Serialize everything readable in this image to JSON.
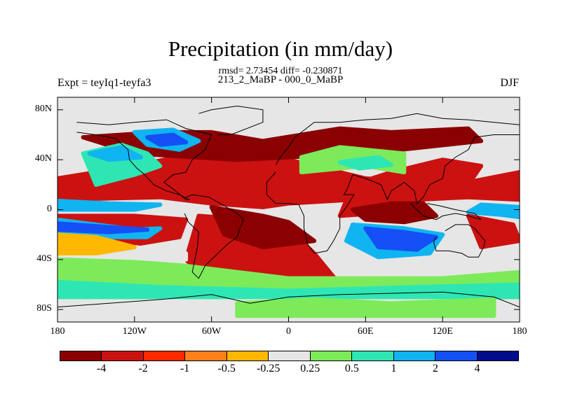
{
  "title": "Precipitation (in mm/day)",
  "stats": "rmsd= 2.73454 diff= -0.230871",
  "expt": "Expt = teyIq1-teyfa3",
  "period": "213_2_MaBP - 000_0_MaBP",
  "season": "DJF",
  "y_ticks": [
    {
      "label": "80N",
      "lat": 80
    },
    {
      "label": "40N",
      "lat": 40
    },
    {
      "label": "0",
      "lat": 0
    },
    {
      "label": "40S",
      "lat": -40
    },
    {
      "label": "80S",
      "lat": -80
    }
  ],
  "x_ticks": [
    {
      "label": "180",
      "lon": -180
    },
    {
      "label": "120W",
      "lon": -120
    },
    {
      "label": "60W",
      "lon": -60
    },
    {
      "label": "0",
      "lon": 0
    },
    {
      "label": "60E",
      "lon": 60
    },
    {
      "label": "120E",
      "lon": 120
    },
    {
      "label": "180",
      "lon": 180
    }
  ],
  "lat_range": [
    -90,
    90
  ],
  "lon_range": [
    -180,
    180
  ],
  "colorbar": {
    "colors": [
      "#8b0000",
      "#cc1111",
      "#ff2a00",
      "#ff7f1a",
      "#ffb800",
      "#e6e6e6",
      "#7dea5a",
      "#2ee6b4",
      "#10b4f0",
      "#1450f5",
      "#000c8c"
    ],
    "labels": [
      "-4",
      "-2",
      "-1",
      "-0.5",
      "-0.25",
      "0.25",
      "0.5",
      "1",
      "2",
      "4"
    ]
  },
  "anomaly_regions": [
    {
      "level": 1,
      "points": [
        [
          -180,
          -5
        ],
        [
          -180,
          -25
        ],
        [
          -120,
          -28
        ],
        [
          -85,
          -22
        ],
        [
          -80,
          -8
        ],
        [
          -120,
          -5
        ]
      ]
    },
    {
      "level": 1,
      "points": [
        [
          -180,
          8
        ],
        [
          -100,
          10
        ],
        [
          -60,
          5
        ],
        [
          -20,
          2
        ],
        [
          0,
          5
        ],
        [
          50,
          8
        ],
        [
          100,
          8
        ],
        [
          140,
          10
        ],
        [
          180,
          8
        ],
        [
          180,
          30
        ],
        [
          130,
          20
        ],
        [
          60,
          25
        ],
        [
          0,
          40
        ],
        [
          -60,
          48
        ],
        [
          -120,
          35
        ],
        [
          -180,
          25
        ]
      ]
    },
    {
      "level": 1,
      "points": [
        [
          -70,
          -5
        ],
        [
          -30,
          -8
        ],
        [
          0,
          -15
        ],
        [
          20,
          -35
        ],
        [
          40,
          -60
        ],
        [
          0,
          -65
        ],
        [
          -60,
          -60
        ],
        [
          -80,
          -40
        ]
      ]
    },
    {
      "level": 1,
      "points": [
        [
          40,
          -5
        ],
        [
          80,
          -2
        ],
        [
          110,
          10
        ],
        [
          140,
          20
        ],
        [
          150,
          35
        ],
        [
          120,
          40
        ],
        [
          80,
          30
        ],
        [
          50,
          20
        ]
      ]
    },
    {
      "level": 0,
      "points": [
        [
          -60,
          2
        ],
        [
          -20,
          -5
        ],
        [
          0,
          -10
        ],
        [
          20,
          -25
        ],
        [
          -20,
          -30
        ],
        [
          -50,
          -20
        ]
      ]
    },
    {
      "level": 0,
      "points": [
        [
          50,
          0
        ],
        [
          80,
          5
        ],
        [
          105,
          5
        ],
        [
          115,
          -5
        ],
        [
          90,
          -10
        ],
        [
          60,
          -8
        ]
      ]
    },
    {
      "level": 0,
      "points": [
        [
          -160,
          58
        ],
        [
          -100,
          62
        ],
        [
          -60,
          62
        ],
        [
          -20,
          55
        ],
        [
          40,
          65
        ],
        [
          80,
          62
        ],
        [
          140,
          65
        ],
        [
          150,
          55
        ],
        [
          60,
          45
        ],
        [
          -40,
          40
        ],
        [
          -120,
          45
        ]
      ]
    },
    {
      "level": 8,
      "points": [
        [
          -180,
          -8
        ],
        [
          -150,
          -12
        ],
        [
          -120,
          -16
        ],
        [
          -100,
          -15
        ],
        [
          -110,
          -22
        ],
        [
          -150,
          -22
        ],
        [
          -180,
          -18
        ]
      ]
    },
    {
      "level": 8,
      "points": [
        [
          -180,
          7
        ],
        [
          -140,
          5
        ],
        [
          -100,
          4
        ],
        [
          -120,
          0
        ],
        [
          -180,
          0
        ]
      ]
    },
    {
      "level": 9,
      "points": [
        [
          -180,
          -11
        ],
        [
          -140,
          -14
        ],
        [
          -110,
          -16
        ],
        [
          -140,
          -18
        ],
        [
          -180,
          -16
        ]
      ]
    },
    {
      "level": 7,
      "points": [
        [
          -150,
          20
        ],
        [
          -120,
          28
        ],
        [
          -100,
          35
        ],
        [
          -110,
          45
        ],
        [
          -130,
          52
        ],
        [
          -160,
          45
        ]
      ]
    },
    {
      "level": 8,
      "points": [
        [
          -155,
          45
        ],
        [
          -130,
          50
        ],
        [
          -115,
          42
        ],
        [
          -140,
          40
        ]
      ]
    },
    {
      "level": 8,
      "points": [
        [
          -120,
          62
        ],
        [
          -90,
          64
        ],
        [
          -70,
          55
        ],
        [
          -85,
          48
        ],
        [
          -110,
          52
        ]
      ]
    },
    {
      "level": 9,
      "points": [
        [
          -110,
          58
        ],
        [
          -90,
          60
        ],
        [
          -80,
          54
        ],
        [
          -100,
          52
        ]
      ]
    },
    {
      "level": 8,
      "points": [
        [
          50,
          -12
        ],
        [
          90,
          -15
        ],
        [
          120,
          -20
        ],
        [
          110,
          -35
        ],
        [
          70,
          -38
        ],
        [
          45,
          -25
        ]
      ]
    },
    {
      "level": 9,
      "points": [
        [
          60,
          -15
        ],
        [
          90,
          -18
        ],
        [
          115,
          -22
        ],
        [
          100,
          -32
        ],
        [
          70,
          -30
        ]
      ]
    },
    {
      "level": 8,
      "points": [
        [
          140,
          -2
        ],
        [
          165,
          -4
        ],
        [
          180,
          -6
        ],
        [
          180,
          2
        ],
        [
          150,
          4
        ]
      ]
    },
    {
      "level": 6,
      "points": [
        [
          10,
          30
        ],
        [
          60,
          35
        ],
        [
          90,
          30
        ],
        [
          90,
          45
        ],
        [
          40,
          50
        ],
        [
          10,
          42
        ]
      ]
    },
    {
      "level": 7,
      "points": [
        [
          40,
          38
        ],
        [
          70,
          42
        ],
        [
          80,
          36
        ],
        [
          55,
          33
        ]
      ]
    },
    {
      "level": 6,
      "points": [
        [
          -180,
          -40
        ],
        [
          -120,
          -42
        ],
        [
          -80,
          -45
        ],
        [
          -40,
          -50
        ],
        [
          0,
          -55
        ],
        [
          60,
          -55
        ],
        [
          120,
          -55
        ],
        [
          180,
          -50
        ],
        [
          180,
          -70
        ],
        [
          -180,
          -70
        ]
      ]
    },
    {
      "level": 5,
      "points": [
        [
          -180,
          -28
        ],
        [
          -120,
          -30
        ],
        [
          -80,
          -35
        ],
        [
          -80,
          -40
        ],
        [
          -180,
          -35
        ]
      ]
    },
    {
      "level": 7,
      "points": [
        [
          -180,
          -58
        ],
        [
          -100,
          -62
        ],
        [
          0,
          -65
        ],
        [
          100,
          -62
        ],
        [
          180,
          -60
        ],
        [
          180,
          -70
        ],
        [
          -180,
          -70
        ]
      ]
    },
    {
      "level": 6,
      "points": [
        [
          -40,
          -75
        ],
        [
          20,
          -72
        ],
        [
          80,
          -75
        ],
        [
          160,
          -72
        ],
        [
          160,
          -85
        ],
        [
          -40,
          -85
        ]
      ]
    },
    {
      "level": 4,
      "points": [
        [
          -180,
          -20
        ],
        [
          -150,
          -22
        ],
        [
          -120,
          -30
        ],
        [
          -150,
          -35
        ],
        [
          -180,
          -35
        ]
      ]
    },
    {
      "level": 0,
      "points": [
        [
          -50,
          -3
        ],
        [
          -40,
          -8
        ],
        [
          -35,
          -3
        ]
      ]
    },
    {
      "level": 1,
      "points": [
        [
          140,
          -5
        ],
        [
          175,
          -12
        ],
        [
          180,
          -25
        ],
        [
          150,
          -30
        ]
      ]
    }
  ],
  "land_outlines": [
    [
      [
        -165,
        70
      ],
      [
        -140,
        68
      ],
      [
        -120,
        70
      ],
      [
        -95,
        72
      ],
      [
        -80,
        65
      ],
      [
        -60,
        60
      ],
      [
        -65,
        48
      ],
      [
        -75,
        40
      ],
      [
        -80,
        30
      ],
      [
        -90,
        28
      ],
      [
        -97,
        22
      ],
      [
        -88,
        15
      ],
      [
        -80,
        8
      ],
      [
        -77,
        8
      ],
      [
        -85,
        12
      ],
      [
        -95,
        15
      ],
      [
        -105,
        20
      ],
      [
        -112,
        28
      ],
      [
        -118,
        33
      ],
      [
        -124,
        40
      ],
      [
        -125,
        48
      ],
      [
        -135,
        57
      ],
      [
        -150,
        60
      ],
      [
        -165,
        62
      ]
    ],
    [
      [
        -80,
        10
      ],
      [
        -75,
        12
      ],
      [
        -62,
        10
      ],
      [
        -50,
        3
      ],
      [
        -40,
        -3
      ],
      [
        -35,
        -8
      ],
      [
        -38,
        -15
      ],
      [
        -40,
        -22
      ],
      [
        -48,
        -28
      ],
      [
        -55,
        -35
      ],
      [
        -65,
        -45
      ],
      [
        -70,
        -55
      ],
      [
        -75,
        -50
      ],
      [
        -73,
        -40
      ],
      [
        -71,
        -30
      ],
      [
        -70,
        -18
      ],
      [
        -78,
        -10
      ],
      [
        -81,
        -3
      ]
    ],
    [
      [
        -55,
        60
      ],
      [
        -45,
        60
      ],
      [
        -20,
        70
      ],
      [
        -20,
        80
      ],
      [
        -40,
        83
      ],
      [
        -60,
        80
      ],
      [
        -70,
        77
      ]
    ],
    [
      [
        -10,
        36
      ],
      [
        -5,
        44
      ],
      [
        0,
        50
      ],
      [
        5,
        58
      ],
      [
        10,
        62
      ],
      [
        20,
        70
      ],
      [
        40,
        70
      ],
      [
        60,
        72
      ],
      [
        80,
        73
      ],
      [
        100,
        77
      ],
      [
        120,
        73
      ],
      [
        140,
        72
      ],
      [
        160,
        70
      ],
      [
        180,
        68
      ],
      [
        180,
        60
      ],
      [
        160,
        60
      ],
      [
        145,
        58
      ],
      [
        140,
        48
      ],
      [
        130,
        42
      ],
      [
        122,
        35
      ],
      [
        120,
        25
      ],
      [
        110,
        20
      ],
      [
        105,
        10
      ],
      [
        100,
        5
      ],
      [
        98,
        15
      ],
      [
        90,
        22
      ],
      [
        80,
        15
      ],
      [
        77,
        8
      ],
      [
        72,
        20
      ],
      [
        60,
        25
      ],
      [
        50,
        28
      ],
      [
        45,
        15
      ],
      [
        43,
        12
      ],
      [
        51,
        12
      ],
      [
        45,
        2
      ],
      [
        40,
        -5
      ],
      [
        40,
        -15
      ],
      [
        35,
        -25
      ],
      [
        30,
        -33
      ],
      [
        20,
        -35
      ],
      [
        15,
        -28
      ],
      [
        12,
        -15
      ],
      [
        12,
        -5
      ],
      [
        8,
        4
      ],
      [
        0,
        5
      ],
      [
        -10,
        5
      ],
      [
        -17,
        12
      ],
      [
        -17,
        22
      ],
      [
        -10,
        30
      ]
    ],
    [
      [
        115,
        -22
      ],
      [
        113,
        -26
      ],
      [
        115,
        -33
      ],
      [
        125,
        -33
      ],
      [
        135,
        -35
      ],
      [
        140,
        -38
      ],
      [
        148,
        -38
      ],
      [
        152,
        -30
      ],
      [
        153,
        -25
      ],
      [
        145,
        -15
      ],
      [
        140,
        -12
      ],
      [
        135,
        -12
      ],
      [
        130,
        -12
      ],
      [
        122,
        -17
      ]
    ],
    [
      [
        95,
        5
      ],
      [
        105,
        -5
      ],
      [
        115,
        -8
      ],
      [
        120,
        -5
      ],
      [
        130,
        -3
      ],
      [
        140,
        -5
      ],
      [
        150,
        -8
      ],
      [
        145,
        -3
      ],
      [
        130,
        0
      ],
      [
        118,
        3
      ],
      [
        108,
        5
      ]
    ],
    [
      [
        -180,
        -78
      ],
      [
        -140,
        -75
      ],
      [
        -100,
        -72
      ],
      [
        -60,
        -68
      ],
      [
        -30,
        -75
      ],
      [
        0,
        -70
      ],
      [
        40,
        -68
      ],
      [
        80,
        -67
      ],
      [
        120,
        -66
      ],
      [
        160,
        -70
      ],
      [
        180,
        -78
      ]
    ]
  ]
}
